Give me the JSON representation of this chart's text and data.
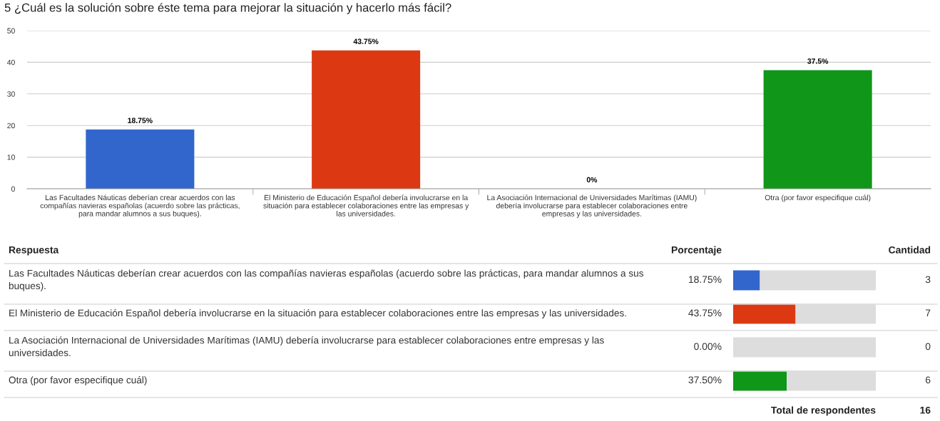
{
  "chart_data": [
    {
      "type": "bar",
      "title": "5 ¿Cuál es la solución sobre éste tema para mejorar la situación y hacerlo más fácil?",
      "categories": [
        "Las Facultades Náuticas deberían crear acuerdos con las compañías navieras españolas (acuerdo sobre las prácticas, para mandar alumnos a sus buques).",
        "El Ministerio de Educación Español debería involucrarse en la situación para establecer colaboraciones entre las empresas y las universidades.",
        "La Asociación Internacional de Universidades Marítimas (IAMU) debería involucrarse para establecer colaboraciones entre empresas y las universidades.",
        "Otra (por favor especifique cuál)"
      ],
      "values": [
        18.75,
        43.75,
        0,
        37.5
      ],
      "colors": [
        "#3366cc",
        "#dc3912",
        "#ff9900",
        "#109618"
      ],
      "value_labels": [
        "18.75%",
        "43.75%",
        "0%",
        "37.5%"
      ],
      "ylim": [
        0,
        50
      ],
      "yticks": [
        0,
        10,
        20,
        30,
        40,
        50
      ],
      "grid": "y",
      "legend": false
    },
    {
      "type": "bar",
      "orientation": "horizontal",
      "categories": [
        "Las Facultades Náuticas deberían crear acuerdos con las compañías navieras españolas (acuerdo sobre las prácticas, para mandar alumnos a sus buques).",
        "El Ministerio de Educación Español debería involucrarse en la situación para establecer colaboraciones entre las empresas y las universidades.",
        "La Asociación Internacional de Universidades Marítimas (IAMU) debería involucrarse para establecer colaboraciones entre empresas y las universidades.",
        "Otra (por favor especifique cuál)"
      ],
      "stacked": true,
      "series": [
        {
          "values": [
            18.75,
            43.75,
            0,
            37.5
          ],
          "colors": [
            "#3366cc",
            "#dc3912",
            "#ff9900",
            "#109618"
          ],
          "value_labels": [
            "18.75%",
            "43.75%",
            "0.00%",
            "37.50%"
          ]
        },
        {
          "values": [
            81.25,
            56.25,
            100,
            62.5
          ],
          "color": "#dddddd"
        }
      ],
      "xlim": [
        0,
        100
      ],
      "legend": false,
      "annotations": [
        "Respuesta",
        "Porcentaje",
        "Cantidad",
        "3",
        "7",
        "0",
        "6",
        "Total de respondentes",
        "16"
      ]
    }
  ]
}
